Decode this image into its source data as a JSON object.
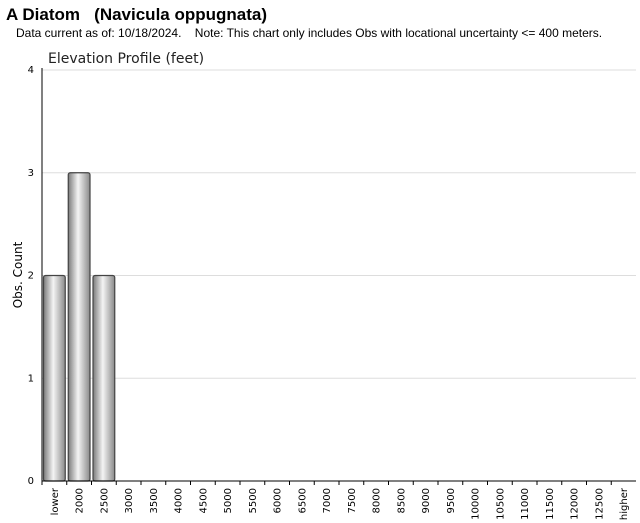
{
  "header": {
    "title": "A Diatom   (Navicula oppugnata)",
    "subtitle": "Data current as of: 10/18/2024.    Note: This chart only includes Obs with locational uncertainty <= 400 meters."
  },
  "chart_data": {
    "type": "bar",
    "title": "Elevation Profile (feet)",
    "xlabel": "",
    "ylabel": "Obs. Count",
    "ylim": [
      0,
      4
    ],
    "yticks": [
      "0",
      "1",
      "2",
      "3",
      "4"
    ],
    "grid": true,
    "categories": [
      "lower",
      "2000",
      "2500",
      "3000",
      "3500",
      "4000",
      "4500",
      "5000",
      "5500",
      "6000",
      "6500",
      "7000",
      "7500",
      "8000",
      "8500",
      "9000",
      "9500",
      "10000",
      "10500",
      "11000",
      "11500",
      "12000",
      "12500",
      "higher"
    ],
    "values": [
      2,
      3,
      2,
      0,
      0,
      0,
      0,
      0,
      0,
      0,
      0,
      0,
      0,
      0,
      0,
      0,
      0,
      0,
      0,
      0,
      0,
      0,
      0,
      0
    ],
    "colors": {
      "bar_light": "#f2f2f2",
      "bar_dark": "#8a8a8a",
      "bar_edge": "#444444",
      "grid": "#dddddd",
      "axis": "#000000"
    }
  }
}
